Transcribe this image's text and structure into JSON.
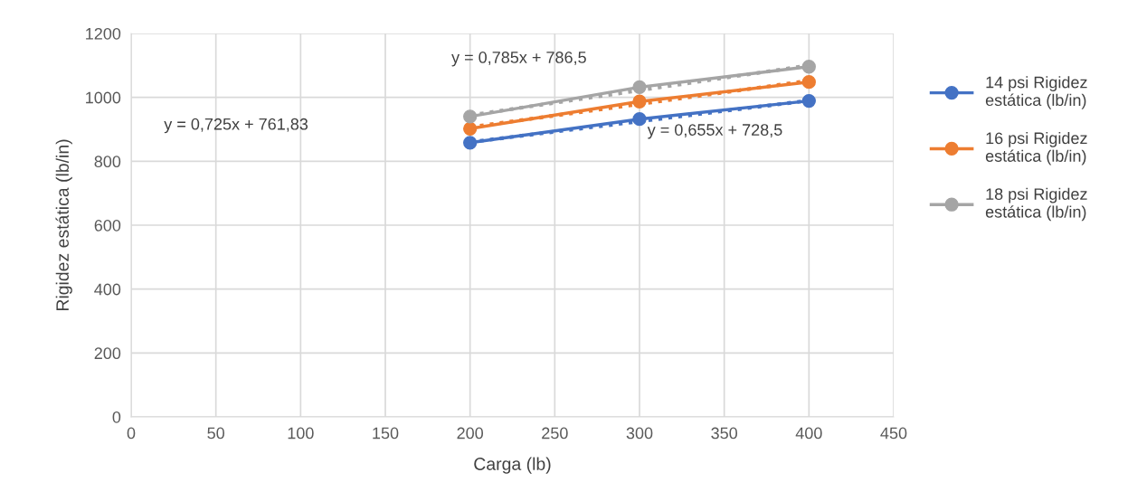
{
  "chart_data": {
    "type": "line",
    "xlabel": "Carga (lb)",
    "ylabel": "Rigidez estática (lb/in)",
    "x": [
      200,
      300,
      400
    ],
    "series": [
      {
        "name": "14 psi Rigidez estática (lb/in)",
        "color": "#4472c4",
        "values": [
          858,
          932,
          989
        ]
      },
      {
        "name": "16 psi Rigidez estática (lb/in)",
        "color": "#ed7d31",
        "values": [
          902,
          987,
          1048
        ]
      },
      {
        "name": "18 psi Rigidez estática (lb/in)",
        "color": "#a5a5a5",
        "values": [
          940,
          1032,
          1096
        ]
      },
      {
        "color": "#4472c4",
        "values": [
          860,
          925,
          990
        ],
        "line_style": "dotted",
        "marker": "none"
      },
      {
        "color": "#ed7d31",
        "values": [
          907,
          979,
          1052
        ],
        "line_style": "dotted",
        "marker": "none"
      },
      {
        "color": "#a5a5a5",
        "values": [
          944,
          1022,
          1100
        ],
        "line_style": "dotted",
        "marker": "none"
      }
    ],
    "annotations": [
      "y = 0,725x + 761,83",
      "y = 0,785x + 786,5",
      "y = 0,655x + 728,5"
    ],
    "xlim": [
      0,
      450
    ],
    "xticks": [
      0,
      50,
      100,
      150,
      200,
      250,
      300,
      350,
      400,
      450
    ],
    "ylim": [
      0,
      1200
    ],
    "yticks": [
      0,
      200,
      400,
      600,
      800,
      1000,
      1200
    ],
    "grid": true,
    "legend": "right",
    "marker": "circle",
    "line_style": "solid"
  }
}
